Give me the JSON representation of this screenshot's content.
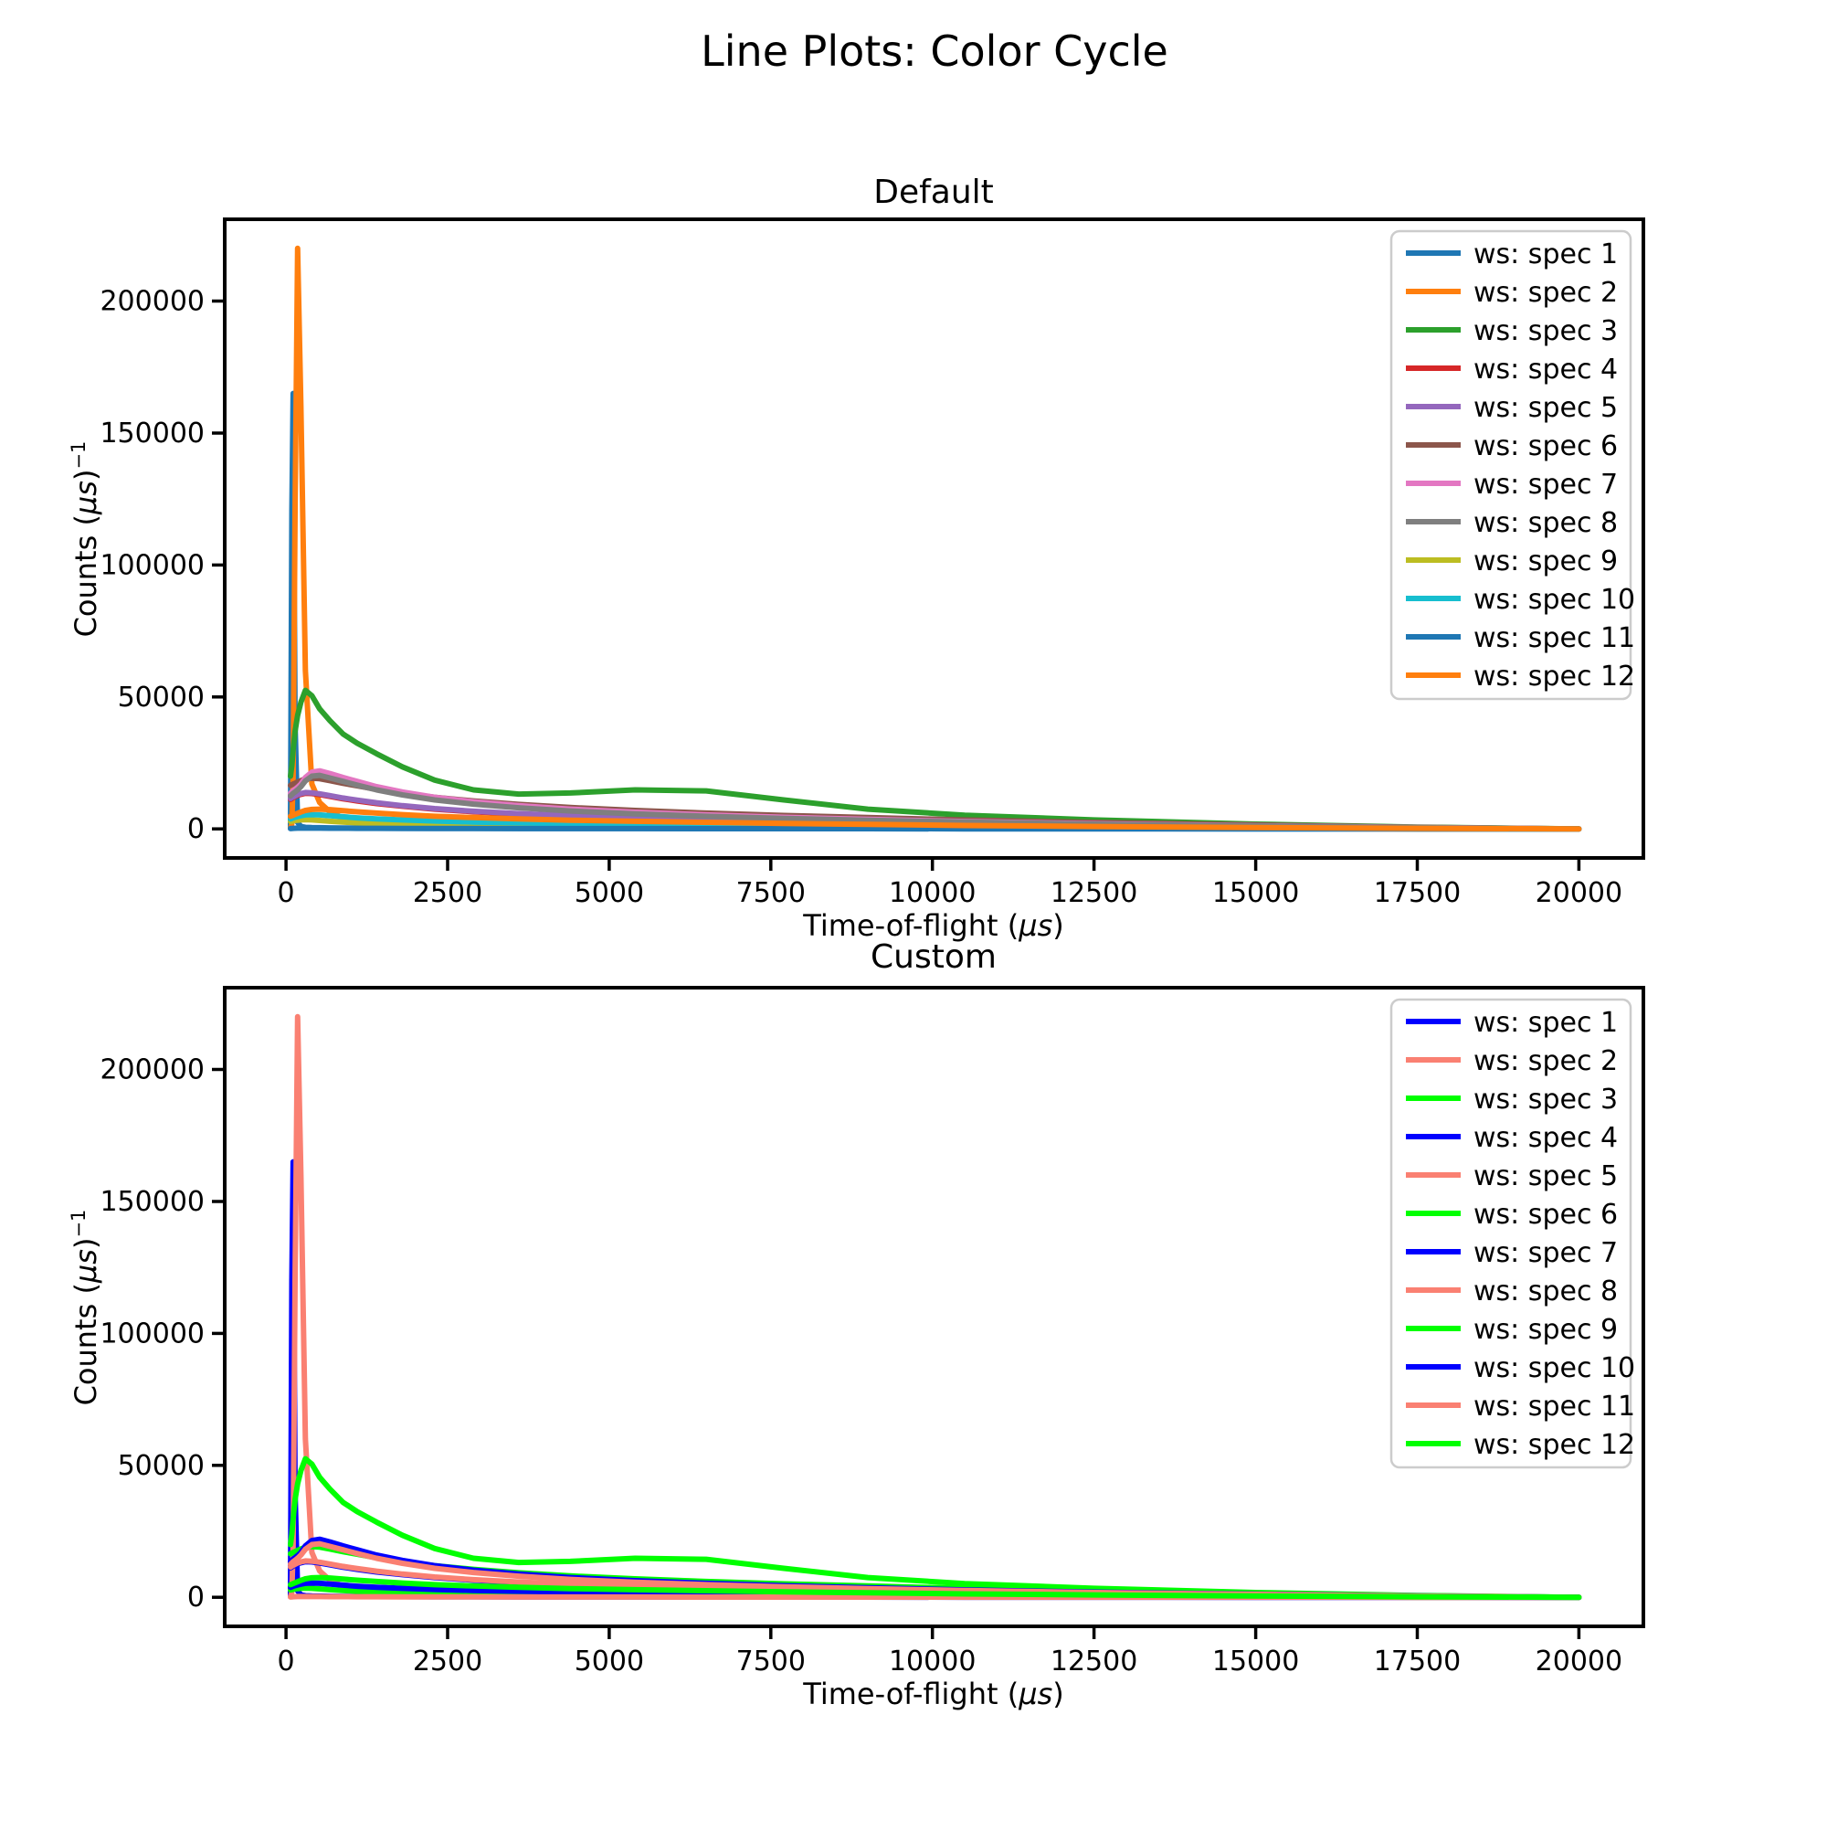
{
  "figure": {
    "title": "Line Plots: Color Cycle",
    "background": "#ffffff"
  },
  "charts": [
    {
      "title": "Default",
      "xlabel": {
        "pre": "Time-of-flight (",
        "mu": "μs",
        "post": ")"
      },
      "ylabel": {
        "pre": "Counts (",
        "mu": "μs",
        "post": ")",
        "sup": "−1"
      },
      "palette": [
        "#1f77b4",
        "#ff7f0e",
        "#2ca02c",
        "#d62728",
        "#9467bd",
        "#8c564b",
        "#e377c2",
        "#7f7f7f",
        "#bcbd22",
        "#17becf",
        "#1f77b4",
        "#ff7f0e"
      ],
      "legend_edge_color": "#cccccc"
    },
    {
      "title": "Custom",
      "xlabel": {
        "pre": "Time-of-flight (",
        "mu": "μs",
        "post": ")"
      },
      "ylabel": {
        "pre": "Counts (",
        "mu": "μs",
        "post": ")",
        "sup": "−1"
      },
      "palette": [
        "#0000ff",
        "#fa8072",
        "#00ff00",
        "#0000ff",
        "#fa8072",
        "#00ff00",
        "#0000ff",
        "#fa8072",
        "#00ff00",
        "#0000ff",
        "#fa8072",
        "#00ff00"
      ],
      "legend_edge_color": "#cccccc"
    }
  ],
  "chart_data": {
    "type": "line",
    "title": "Line Plots: Color Cycle",
    "subplot_titles": [
      "Default",
      "Custom"
    ],
    "xlabel": "Time-of-flight (μs)",
    "ylabel": "Counts (μs)⁻¹",
    "grid": false,
    "legend_position": "upper right",
    "xlim": [
      -948,
      20998
    ],
    "ylim": [
      -11000,
      231000
    ],
    "xticks": [
      0,
      2500,
      5000,
      7500,
      10000,
      12500,
      15000,
      17500,
      20000
    ],
    "yticks": [
      0,
      50000,
      100000,
      150000,
      200000
    ],
    "x": [
      70,
      90,
      110,
      140,
      180,
      230,
      300,
      400,
      520,
      680,
      880,
      1100,
      1400,
      1800,
      2300,
      2900,
      3600,
      4400,
      5400,
      6500,
      7700,
      9000,
      10500,
      12500,
      15000,
      17500,
      20000
    ],
    "series": [
      {
        "name": "ws: spec 1",
        "values": [
          500,
          120000,
          165000,
          40000,
          2500,
          900,
          600,
          500,
          450,
          400,
          350,
          320,
          290,
          260,
          230,
          200,
          180,
          160,
          140,
          120,
          100,
          80,
          60,
          40,
          25,
          10,
          0
        ]
      },
      {
        "name": "ws: spec 2",
        "values": [
          300,
          2000,
          20000,
          120000,
          220000,
          160000,
          60000,
          17000,
          10000,
          6500,
          4200,
          3000,
          2300,
          1800,
          1400,
          1100,
          900,
          750,
          600,
          480,
          380,
          300,
          230,
          160,
          100,
          50,
          0
        ]
      },
      {
        "name": "ws: spec 3",
        "values": [
          20000,
          24000,
          30000,
          37000,
          43000,
          48000,
          52500,
          50500,
          45500,
          41000,
          36000,
          32500,
          28500,
          23500,
          18500,
          14800,
          13200,
          13600,
          14800,
          14400,
          11000,
          7500,
          5200,
          3400,
          1800,
          700,
          0
        ]
      },
      {
        "name": "ws: spec 4",
        "values": [
          11200,
          11500,
          11800,
          12200,
          12700,
          13100,
          13500,
          13400,
          13000,
          12300,
          11400,
          10600,
          9600,
          8600,
          7500,
          6500,
          5600,
          4900,
          4200,
          3600,
          3000,
          2500,
          2000,
          1400,
          850,
          300,
          0
        ]
      },
      {
        "name": "ws: spec 5",
        "values": [
          11500,
          11800,
          12100,
          12500,
          13000,
          13400,
          13800,
          13700,
          13300,
          12600,
          11700,
          10900,
          9900,
          8800,
          7700,
          6700,
          5800,
          5000,
          4300,
          3700,
          3100,
          2600,
          2100,
          1500,
          900,
          350,
          0
        ]
      },
      {
        "name": "ws: spec 6",
        "values": [
          16500,
          16800,
          17000,
          17300,
          17800,
          18300,
          19000,
          19200,
          19000,
          18300,
          17300,
          16300,
          15000,
          13500,
          12000,
          10600,
          9300,
          8100,
          7000,
          6000,
          5100,
          4300,
          3400,
          2500,
          1500,
          600,
          0
        ]
      },
      {
        "name": "ws: spec 7",
        "values": [
          13500,
          14000,
          14500,
          15000,
          15800,
          17000,
          19500,
          21500,
          22000,
          21000,
          19500,
          18000,
          16000,
          14000,
          12000,
          10300,
          8800,
          7500,
          6300,
          5300,
          4400,
          3600,
          2800,
          2000,
          1200,
          500,
          0
        ]
      },
      {
        "name": "ws: spec 8",
        "values": [
          12500,
          13000,
          13500,
          14000,
          14800,
          16000,
          18200,
          20000,
          20300,
          19300,
          18000,
          16600,
          14800,
          12900,
          11000,
          9400,
          8000,
          6800,
          5700,
          4800,
          4000,
          3300,
          2600,
          1800,
          1100,
          450,
          0
        ]
      },
      {
        "name": "ws: spec 9",
        "values": [
          2800,
          2900,
          3000,
          3200,
          3300,
          3400,
          3500,
          3400,
          3200,
          2900,
          2600,
          2300,
          2000,
          1700,
          1500,
          1300,
          1100,
          950,
          800,
          680,
          560,
          450,
          350,
          240,
          140,
          60,
          0
        ]
      },
      {
        "name": "ws: spec 10",
        "values": [
          3800,
          4000,
          4200,
          4400,
          4700,
          5000,
          5300,
          5400,
          5300,
          5000,
          4600,
          4200,
          3800,
          3400,
          3000,
          2600,
          2300,
          2000,
          1700,
          1500,
          1200,
          1000,
          800,
          550,
          330,
          130,
          0
        ]
      },
      {
        "name": "ws: spec 11",
        "values": [
          100,
          150,
          200,
          250,
          280,
          300,
          300,
          290,
          280,
          260,
          240,
          220,
          200,
          180,
          160,
          140,
          120,
          110,
          100,
          90,
          80,
          70,
          60,
          45,
          30,
          15,
          0
        ]
      },
      {
        "name": "ws: spec 12",
        "values": [
          4800,
          5000,
          5200,
          5500,
          5900,
          6400,
          7000,
          7400,
          7500,
          7300,
          6900,
          6500,
          6000,
          5400,
          4800,
          4300,
          3800,
          3300,
          2900,
          2500,
          2100,
          1700,
          1300,
          900,
          500,
          200,
          0
        ]
      }
    ]
  }
}
